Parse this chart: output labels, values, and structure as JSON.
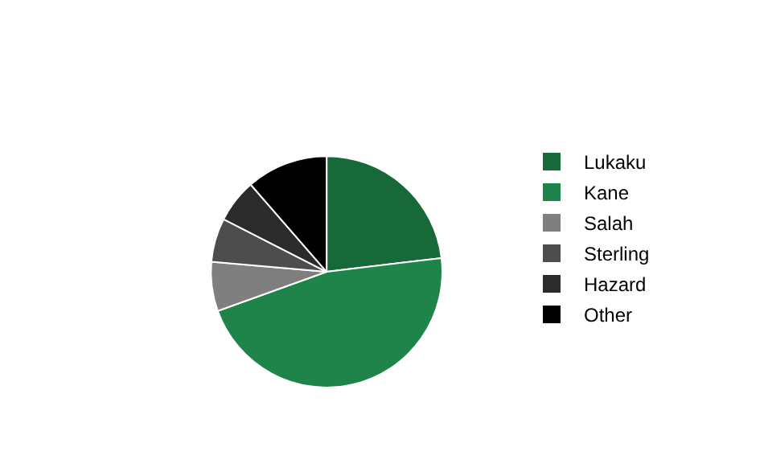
{
  "chart_data": {
    "type": "pie",
    "categories": [
      "Lukaku",
      "Kane",
      "Salah",
      "Sterling",
      "Hazard",
      "Other"
    ],
    "values": [
      23.1,
      46.4,
      6.9,
      6.1,
      6.1,
      11.4
    ],
    "colors": [
      "#17693a",
      "#1e8449",
      "#7f7f7f",
      "#4d4d4d",
      "#2b2b2b",
      "#000000"
    ],
    "legend": "right"
  }
}
